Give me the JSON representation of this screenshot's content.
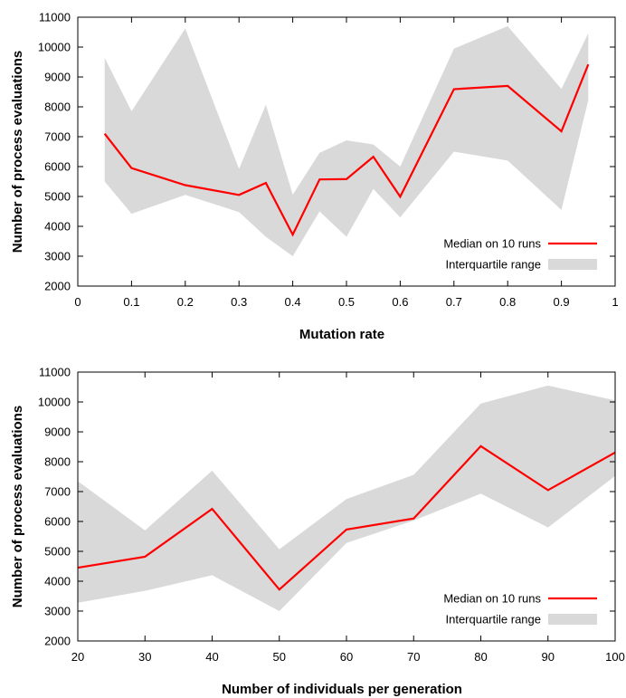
{
  "chart_data": [
    {
      "type": "line",
      "xlabel": "Mutation rate",
      "ylabel": "Number of process evaluations",
      "xlim": [
        0,
        1
      ],
      "ylim": [
        2000,
        11000
      ],
      "xticks": [
        0,
        0.1,
        0.2,
        0.3,
        0.4,
        0.5,
        0.6,
        0.7,
        0.8,
        0.9,
        1
      ],
      "xtick_labels": [
        "0",
        "0.1",
        "0.2",
        "0.3",
        "0.4",
        "0.5",
        "0.6",
        "0.7",
        "0.8",
        "0.9",
        "1"
      ],
      "yticks": [
        2000,
        3000,
        4000,
        5000,
        6000,
        7000,
        8000,
        9000,
        10000,
        11000
      ],
      "ytick_labels": [
        "2000",
        "3000",
        "4000",
        "5000",
        "6000",
        "7000",
        "8000",
        "9000",
        "10000",
        "11000"
      ],
      "legend_position": "bottom-right",
      "grid": false,
      "x": [
        0.05,
        0.1,
        0.2,
        0.3,
        0.35,
        0.4,
        0.45,
        0.5,
        0.55,
        0.6,
        0.7,
        0.8,
        0.9,
        0.95
      ],
      "series": [
        {
          "name": "Median on 10 runs",
          "kind": "line",
          "color": "#ff0000",
          "values": [
            7100,
            5950,
            5380,
            5050,
            5450,
            3720,
            5570,
            5580,
            6330,
            4990,
            8590,
            8700,
            7180,
            9420
          ]
        },
        {
          "name": "Interquartile range",
          "kind": "band",
          "color": "#d9d9d9",
          "lower": [
            5500,
            4420,
            5050,
            4480,
            3650,
            3000,
            4500,
            3650,
            5250,
            4300,
            6500,
            6200,
            4550,
            8220
          ],
          "upper": [
            9640,
            7850,
            10620,
            5920,
            8070,
            5060,
            6460,
            6880,
            6740,
            6000,
            9950,
            10700,
            8600,
            10460
          ]
        }
      ]
    },
    {
      "type": "line",
      "xlabel": "Number of individuals per generation",
      "ylabel": "Number of process evaluations",
      "xlim": [
        20,
        100
      ],
      "ylim": [
        2000,
        11000
      ],
      "xticks": [
        20,
        30,
        40,
        50,
        60,
        70,
        80,
        90,
        100
      ],
      "xtick_labels": [
        "20",
        "30",
        "40",
        "50",
        "60",
        "70",
        "80",
        "90",
        "100"
      ],
      "yticks": [
        2000,
        3000,
        4000,
        5000,
        6000,
        7000,
        8000,
        9000,
        10000,
        11000
      ],
      "ytick_labels": [
        "2000",
        "3000",
        "4000",
        "5000",
        "6000",
        "7000",
        "8000",
        "9000",
        "10000",
        "11000"
      ],
      "legend_position": "bottom-right",
      "grid": false,
      "x": [
        20,
        30,
        40,
        50,
        60,
        70,
        80,
        90,
        100
      ],
      "series": [
        {
          "name": "Median on 10 runs",
          "kind": "line",
          "color": "#ff0000",
          "values": [
            4450,
            4820,
            6420,
            3720,
            5730,
            6100,
            8520,
            7050,
            8310
          ]
        },
        {
          "name": "Interquartile range",
          "kind": "band",
          "color": "#d9d9d9",
          "lower": [
            3280,
            3680,
            4200,
            3000,
            5280,
            6030,
            6930,
            5800,
            7520
          ],
          "upper": [
            7350,
            5700,
            7700,
            5070,
            6750,
            7560,
            9950,
            10550,
            10050
          ]
        }
      ]
    }
  ]
}
